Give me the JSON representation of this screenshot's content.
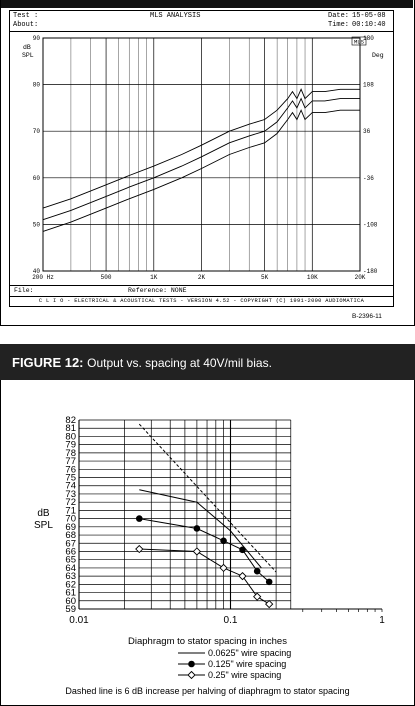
{
  "figure11": {
    "header": {
      "test_label": "Test :",
      "about_label": "About:",
      "center_text": "MLS ANALYSIS",
      "date_label": "Date:",
      "date_value": "15-05-08",
      "time_label": "Time:",
      "time_value": "00:10:40"
    },
    "left_axis_unit": "dB\nSPL",
    "right_axis_unit": "Deg",
    "corner_tag": "MLS",
    "files_label": "File:",
    "reference_text": "Reference: NONE",
    "credits": "C L I O   -   ELECTRICAL & ACOUSTICAL TESTS   -   VERSION 4.52   -   COPYRIGHT (C) 1991-2000 AUDIOMATICA",
    "code": "B-2396-11"
  },
  "chart_data": [
    {
      "type": "line",
      "title": "",
      "xlabel": "",
      "ylabel": "dB SPL",
      "y2label": "Deg",
      "xscale": "log",
      "xlim": [
        200,
        20000
      ],
      "ylim": [
        40,
        90
      ],
      "y2lim": [
        -180,
        180
      ],
      "x_ticks": [
        200,
        500,
        1000,
        2000,
        5000,
        10000,
        20000
      ],
      "x_tick_labels": [
        "200 Hz",
        "500",
        "1K",
        "2K",
        "5K",
        "10K",
        "20K"
      ],
      "y_ticks": [
        40,
        50,
        60,
        70,
        80,
        90
      ],
      "y_tick_labels": [
        "40",
        "50",
        "60",
        "70",
        "80",
        "90"
      ],
      "y2_ticks": [
        -180,
        -108,
        -36,
        36,
        108,
        180
      ],
      "y2_tick_labels": [
        "-180",
        "-108",
        "-36",
        "36",
        "108",
        "180"
      ],
      "grid": true,
      "legend": "none",
      "series": [
        {
          "x": [
            200,
            300,
            500,
            700,
            1000,
            1500,
            2000,
            3000,
            4000,
            5000,
            6000,
            7000,
            7500,
            8000,
            8500,
            9000,
            10000,
            12000,
            15000,
            20000
          ],
          "y": [
            53.5,
            55.5,
            58.5,
            60.5,
            62.5,
            65,
            67,
            70,
            71.5,
            72.5,
            74.5,
            77,
            78.5,
            77,
            79,
            77,
            78.5,
            78.5,
            79,
            79
          ]
        },
        {
          "x": [
            200,
            300,
            500,
            700,
            1000,
            1500,
            2000,
            3000,
            4000,
            5000,
            6000,
            7000,
            7500,
            8000,
            8500,
            9000,
            10000,
            12000,
            15000,
            20000
          ],
          "y": [
            51,
            53,
            56,
            58,
            60,
            62.5,
            64.5,
            67.5,
            69,
            70,
            72,
            75,
            76.5,
            75,
            77,
            75,
            76.5,
            76.5,
            77,
            77
          ]
        },
        {
          "x": [
            200,
            300,
            500,
            700,
            1000,
            1500,
            2000,
            3000,
            4000,
            5000,
            6000,
            7000,
            7500,
            8000,
            8500,
            9000,
            10000,
            12000,
            15000,
            20000
          ],
          "y": [
            48.5,
            50.5,
            53.5,
            55.5,
            57.5,
            60,
            62,
            65,
            66.5,
            67.5,
            69.5,
            72.5,
            74,
            72.5,
            74.5,
            72.5,
            74,
            74,
            74.5,
            74.5
          ]
        }
      ]
    },
    {
      "type": "line",
      "title": "FIGURE 12:",
      "subtitle": "Output vs. spacing at 40V/mil bias.",
      "xlabel": "Diaphragm to stator spacing in inches",
      "ylabel": "dB\nSPL",
      "xscale": "log",
      "xlim": [
        0.01,
        1
      ],
      "ylim": [
        59,
        82
      ],
      "x_ticks": [
        0.01,
        0.1,
        1
      ],
      "x_tick_labels": [
        "0.01",
        "0.1",
        "1"
      ],
      "y_ticks": [
        59,
        60,
        61,
        62,
        63,
        64,
        65,
        66,
        67,
        68,
        69,
        70,
        71,
        72,
        73,
        74,
        75,
        76,
        77,
        78,
        79,
        80,
        81,
        82
      ],
      "y_tick_labels": [
        "59",
        "60",
        "61",
        "62",
        "63",
        "64",
        "65",
        "66",
        "67",
        "68",
        "69",
        "70",
        "71",
        "72",
        "73",
        "74",
        "75",
        "76",
        "77",
        "78",
        "79",
        "80",
        "81",
        "82"
      ],
      "grid": true,
      "legend": "bottom",
      "series": [
        {
          "name": "0.0625\" wire spacing",
          "style": "solid",
          "marker": "none",
          "x": [
            0.025,
            0.06,
            0.1,
            0.16
          ],
          "y": [
            73.5,
            72,
            68.5,
            64
          ]
        },
        {
          "name": "0.125\" wire spacing",
          "style": "solid",
          "marker": "filled-circle",
          "x": [
            0.025,
            0.06,
            0.09,
            0.12,
            0.15,
            0.18
          ],
          "y": [
            70,
            68.8,
            67.3,
            66.2,
            63.6,
            62.3
          ]
        },
        {
          "name": "0.25\" wire spacing",
          "style": "solid",
          "marker": "open-diamond",
          "x": [
            0.025,
            0.06,
            0.09,
            0.12,
            0.15,
            0.18
          ],
          "y": [
            66.3,
            66,
            64,
            63,
            60.5,
            59.6
          ]
        },
        {
          "name": "",
          "style": "dashed",
          "marker": "none",
          "x": [
            0.025,
            0.2
          ],
          "y": [
            81.5,
            63.5
          ]
        }
      ],
      "note": "Dashed line is 6 dB increase per halving of diaphragm to stator spacing"
    }
  ]
}
